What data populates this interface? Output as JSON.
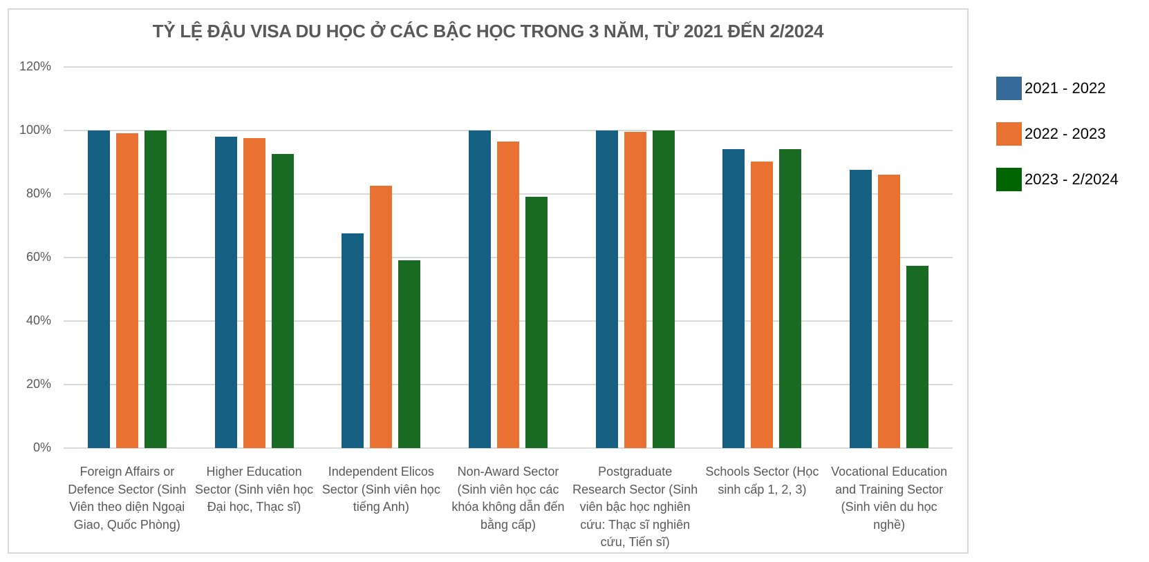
{
  "chart_data": {
    "type": "bar",
    "title": "TỶ LỆ ĐẬU VISA DU HỌC Ở CÁC BẬC HỌC TRONG 3 NĂM, TỪ 2021 ĐẾN 2/2024",
    "xlabel": "",
    "ylabel": "",
    "ylim": [
      0,
      1.2
    ],
    "yticks": [
      "0%",
      "20%",
      "40%",
      "60%",
      "80%",
      "100%",
      "120%"
    ],
    "grid": true,
    "legend_position": "right",
    "categories": [
      "Foreign Affairs or Defence Sector (Sinh Viên theo diện Ngoại Giao, Quốc Phòng)",
      "Higher Education Sector (Sinh viên học Đại học, Thạc sĩ)",
      "Independent Elicos Sector (Sinh viên học tiếng Anh)",
      "Non-Award Sector (Sinh viên học các khóa không dẫn đến bằng cấp)",
      "Postgraduate Research Sector (Sinh viên bậc học nghiên cứu: Thạc sĩ nghiên cứu, Tiến sĩ)",
      "Schools Sector (Học sinh cấp 1, 2, 3)",
      "Vocational Education and Training Sector (Sinh viên du học nghề)"
    ],
    "category_lines": [
      "Foreign Affairs or\nDefence Sector (Sinh\nViên theo diện Ngoại\nGiao, Quốc Phòng)",
      "Higher Education\nSector (Sinh viên học\nĐại học, Thạc sĩ)",
      "Independent Elicos\nSector (Sinh viên học\ntiếng Anh)",
      "Non-Award Sector\n(Sinh viên học các\nkhóa không dẫn đến\nbằng cấp)",
      "Postgraduate\nResearch Sector (Sinh\nviên bậc học nghiên\ncứu: Thạc sĩ nghiên\ncứu, Tiến sĩ)",
      "Schools Sector (Học\nsinh cấp 1, 2, 3)",
      "Vocational Education\nand Training Sector\n(Sinh viên du học\nnghề)"
    ],
    "series": [
      {
        "name": "2021 - 2022",
        "color": "#156082",
        "legend_color": "#356A9A",
        "values": [
          1.0,
          0.98,
          0.676,
          1.0,
          1.0,
          0.941,
          0.876
        ]
      },
      {
        "name": "2022 - 2023",
        "color": "#E97132",
        "legend_color": "#E97132",
        "values": [
          0.991,
          0.976,
          0.826,
          0.965,
          0.996,
          0.902,
          0.861
        ]
      },
      {
        "name": "2023 - 2/2024",
        "color": "#196B24",
        "legend_color": "#006400",
        "values": [
          1.0,
          0.926,
          0.591,
          0.791,
          1.0,
          0.941,
          0.574
        ]
      }
    ]
  }
}
